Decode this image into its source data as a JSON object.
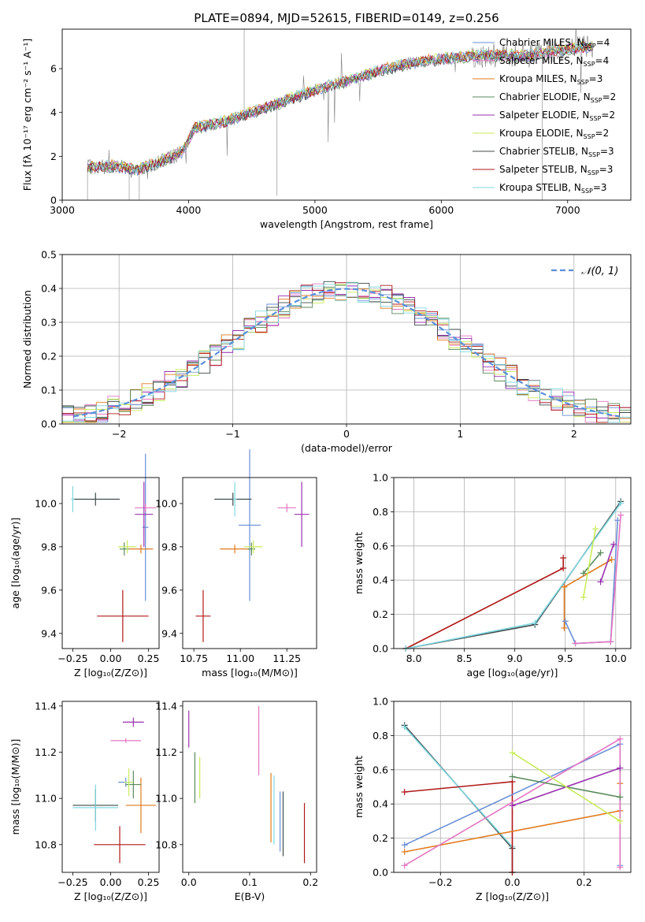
{
  "colors": {
    "chab_miles": "#6a8fd8",
    "salp_miles": "#e377c2",
    "krou_miles": "#e07b1f",
    "chab_elodie": "#5a8a5a",
    "salp_elodie": "#9b30b0",
    "krou_elodie": "#c8ec5a",
    "chab_stelib": "#3f4a4a",
    "salp_stelib": "#b01818",
    "krou_stelib": "#80d8e0",
    "spectrum": "#808080",
    "gauss": "#5b8fd8"
  },
  "chart_data": [
    {
      "type": "line",
      "title": "PLATE=0894, MJD=52615, FIBERID=0149, z=0.256",
      "xlabel": "wavelength [Angstrom, rest frame]",
      "ylabel": "Flux [fλ 10⁻¹⁷ erg cm⁻² s⁻¹ A⁻¹]",
      "xlim": [
        3000,
        7500
      ],
      "ylim": [
        0,
        7.8
      ],
      "xticks": [
        "3000",
        "4000",
        "5000",
        "6000",
        "7000"
      ],
      "yticks": [
        "0",
        "2",
        "4",
        "6"
      ],
      "grid": false,
      "legend": "top-right",
      "legend_entries": [
        {
          "label": "Chabrier MILES, N",
          "sub": "SSP",
          "suffix": "=4",
          "color": "chab_miles"
        },
        {
          "label": "Salpeter MILES, N",
          "sub": "SSP",
          "suffix": "=4",
          "color": "salp_miles"
        },
        {
          "label": "Kroupa MILES, N",
          "sub": "SSP",
          "suffix": "=3",
          "color": "krou_miles"
        },
        {
          "label": "Chabrier ELODIE, N",
          "sub": "SSP",
          "suffix": "=2",
          "color": "chab_elodie"
        },
        {
          "label": "Salpeter ELODIE, N",
          "sub": "SSP",
          "suffix": "=2",
          "color": "salp_elodie"
        },
        {
          "label": "Kroupa ELODIE, N",
          "sub": "SSP",
          "suffix": "=2",
          "color": "krou_elodie"
        },
        {
          "label": "Chabrier STELIB, N",
          "sub": "SSP",
          "suffix": "=3",
          "color": "chab_stelib"
        },
        {
          "label": "Salpeter STELIB, N",
          "sub": "SSP",
          "suffix": "=3",
          "color": "salp_stelib"
        },
        {
          "label": "Kroupa STELIB, N",
          "sub": "SSP",
          "suffix": "=3",
          "color": "krou_stelib"
        }
      ],
      "continuum": [
        [
          3200,
          1.5
        ],
        [
          3400,
          1.55
        ],
        [
          3600,
          1.4
        ],
        [
          3800,
          1.8
        ],
        [
          3950,
          2.2
        ],
        [
          4050,
          3.3
        ],
        [
          4300,
          3.6
        ],
        [
          4500,
          4.0
        ],
        [
          4700,
          4.4
        ],
        [
          4900,
          4.8
        ],
        [
          5100,
          5.2
        ],
        [
          5300,
          5.5
        ],
        [
          5500,
          5.9
        ],
        [
          5800,
          6.3
        ],
        [
          6100,
          6.5
        ],
        [
          6400,
          6.6
        ],
        [
          6700,
          6.6
        ],
        [
          7000,
          6.9
        ],
        [
          7200,
          7.0
        ]
      ]
    },
    {
      "type": "bar",
      "xlabel": "(data-model)/error",
      "ylabel": "Normed distribution",
      "xlim": [
        -2.5,
        2.5
      ],
      "ylim": [
        0,
        0.5
      ],
      "xticks": [
        "−2",
        "−1",
        "0",
        "1",
        "2"
      ],
      "yticks": [
        "0.0",
        "0.1",
        "0.2",
        "0.3",
        "0.4",
        "0.5"
      ],
      "grid": true,
      "legend": "top-right",
      "legend_label": "𝒩(0, 1)"
    },
    {
      "type": "scatter",
      "xlabel": "Z [log₁₀(Z/Z⊙)]",
      "ylabel": "age  [log₁₀(age/yr)]",
      "xlim": [
        -0.32,
        0.32
      ],
      "ylim": [
        9.33,
        10.12
      ],
      "xticks": [
        "−0.25",
        "0.00",
        "0.25"
      ],
      "yticks": [
        "9.4",
        "9.6",
        "9.8",
        "10.0"
      ],
      "points": [
        {
          "c": "chab_miles",
          "x": 0.23,
          "y": 9.89,
          "ex": 0.02,
          "ey": 0.34
        },
        {
          "c": "salp_miles",
          "x": 0.23,
          "y": 9.98,
          "ex": 0.07,
          "ey": 0.02
        },
        {
          "c": "krou_miles",
          "x": 0.2,
          "y": 9.79,
          "ex": 0.08,
          "ey": 0.02
        },
        {
          "c": "chab_elodie",
          "x": 0.09,
          "y": 9.79,
          "ex": 0.03,
          "ey": 0.03
        },
        {
          "c": "salp_elodie",
          "x": 0.22,
          "y": 9.95,
          "ex": 0.06,
          "ey": 0.15
        },
        {
          "c": "krou_elodie",
          "x": 0.11,
          "y": 9.8,
          "ex": 0.06,
          "ey": 0.03
        },
        {
          "c": "chab_stelib",
          "x": -0.1,
          "y": 10.02,
          "ex": 0.16,
          "ey": 0.03
        },
        {
          "c": "salp_stelib",
          "x": 0.08,
          "y": 9.48,
          "ex": 0.17,
          "ey": 0.12
        },
        {
          "c": "krou_stelib",
          "x": -0.25,
          "y": 10.02,
          "ex": 0.01,
          "ey": 0.06
        }
      ]
    },
    {
      "type": "scatter",
      "xlabel": "mass [log₁₀(M/M⊙)]",
      "ylabel": "",
      "xlim": [
        10.69,
        11.41
      ],
      "ylim": [
        9.33,
        10.12
      ],
      "xticks": [
        "10.75",
        "11.00",
        "11.25"
      ],
      "yticks": [
        "9.4",
        "9.6",
        "9.8",
        "10.0"
      ],
      "points": [
        {
          "c": "chab_miles",
          "x": 11.05,
          "y": 9.9,
          "ex": 0.06,
          "ey": 0.35
        },
        {
          "c": "salp_miles",
          "x": 11.25,
          "y": 9.98,
          "ex": 0.05,
          "ey": 0.02
        },
        {
          "c": "krou_miles",
          "x": 10.97,
          "y": 9.79,
          "ex": 0.08,
          "ey": 0.02
        },
        {
          "c": "chab_elodie",
          "x": 11.06,
          "y": 9.79,
          "ex": 0.02,
          "ey": 0.03
        },
        {
          "c": "salp_elodie",
          "x": 11.33,
          "y": 9.95,
          "ex": 0.04,
          "ey": 0.15
        },
        {
          "c": "krou_elodie",
          "x": 11.07,
          "y": 9.8,
          "ex": 0.05,
          "ey": 0.03
        },
        {
          "c": "chab_stelib",
          "x": 10.96,
          "y": 10.02,
          "ex": 0.1,
          "ey": 0.03
        },
        {
          "c": "salp_stelib",
          "x": 10.8,
          "y": 9.48,
          "ex": 0.04,
          "ey": 0.12
        },
        {
          "c": "krou_stelib",
          "x": 10.97,
          "y": 10.02,
          "ex": 0.01,
          "ey": 0.08
        }
      ]
    },
    {
      "type": "line",
      "xlabel": "age  [log₁₀(age/yr)]",
      "ylabel": "mass weight",
      "xlim": [
        7.8,
        10.15
      ],
      "ylim": [
        0,
        1
      ],
      "xticks": [
        "8.0",
        "8.5",
        "9.0",
        "9.5",
        "10.0"
      ],
      "yticks": [
        "0.0",
        "0.2",
        "0.4",
        "0.6",
        "0.8",
        "1.0"
      ],
      "grid": true,
      "series": [
        {
          "c": "salp_stelib",
          "x": [
            7.92,
            9.48,
            9.48
          ],
          "y": [
            0.0,
            0.47,
            0.53
          ]
        },
        {
          "c": "chab_stelib",
          "x": [
            7.92,
            9.2,
            10.05
          ],
          "y": [
            0.0,
            0.14,
            0.86
          ]
        },
        {
          "c": "krou_stelib",
          "x": [
            7.92,
            9.2,
            10.05
          ],
          "y": [
            0.0,
            0.15,
            0.85
          ]
        },
        {
          "c": "krou_miles",
          "x": [
            9.49,
            9.49,
            9.96
          ],
          "y": [
            0.12,
            0.36,
            0.52
          ]
        },
        {
          "c": "chab_miles",
          "x": [
            9.5,
            9.6,
            9.95,
            10.02
          ],
          "y": [
            0.16,
            0.03,
            0.04,
            0.75
          ]
        },
        {
          "c": "salp_miles",
          "x": [
            9.6,
            9.95,
            10.05
          ],
          "y": [
            0.03,
            0.04,
            0.78
          ]
        },
        {
          "c": "chab_elodie",
          "x": [
            9.68,
            9.85
          ],
          "y": [
            0.44,
            0.56
          ]
        },
        {
          "c": "salp_elodie",
          "x": [
            9.85,
            9.98
          ],
          "y": [
            0.39,
            0.61
          ]
        },
        {
          "c": "krou_elodie",
          "x": [
            9.68,
            9.8
          ],
          "y": [
            0.3,
            0.7
          ]
        }
      ]
    },
    {
      "type": "scatter",
      "xlabel": "Z [log₁₀(Z/Z⊙)]",
      "ylabel": "mass [log₁₀(M/M⊙)]",
      "xlim": [
        -0.32,
        0.32
      ],
      "ylim": [
        10.68,
        11.42
      ],
      "xticks": [
        "−0.25",
        "0.00",
        "0.25"
      ],
      "yticks": [
        "10.8",
        "11.0",
        "11.2",
        "11.4"
      ],
      "points": [
        {
          "c": "chab_miles",
          "x": 0.1,
          "y": 11.07,
          "ex": 0.05,
          "ey": 0.02
        },
        {
          "c": "salp_miles",
          "x": 0.1,
          "y": 11.25,
          "ex": 0.1,
          "ey": 0.01
        },
        {
          "c": "krou_miles",
          "x": 0.2,
          "y": 10.97,
          "ex": 0.1,
          "ey": 0.12
        },
        {
          "c": "chab_elodie",
          "x": 0.15,
          "y": 11.06,
          "ex": 0.05,
          "ey": 0.06
        },
        {
          "c": "salp_elodie",
          "x": 0.15,
          "y": 11.33,
          "ex": 0.07,
          "ey": 0.02
        },
        {
          "c": "krou_elodie",
          "x": 0.12,
          "y": 11.07,
          "ex": 0.03,
          "ey": 0.06
        },
        {
          "c": "chab_stelib",
          "x": -0.1,
          "y": 10.97,
          "ex": 0.15,
          "ey": 0.07
        },
        {
          "c": "salp_stelib",
          "x": 0.06,
          "y": 10.8,
          "ex": 0.17,
          "ey": 0.08
        },
        {
          "c": "krou_stelib",
          "x": -0.1,
          "y": 10.96,
          "ex": 0.15,
          "ey": 0.1
        }
      ]
    },
    {
      "type": "scatter",
      "xlabel": "E(B-V)",
      "ylabel": "",
      "xlim": [
        -0.01,
        0.21
      ],
      "ylim": [
        10.68,
        11.42
      ],
      "xticks": [
        "0.0",
        "0.1",
        "0.2"
      ],
      "yticks": [
        "10.8",
        "11.0",
        "11.2",
        "11.4"
      ],
      "points": [
        {
          "c": "chab_miles",
          "x": 0.15,
          "y": 10.9,
          "ex": 0,
          "ey": 0.13
        },
        {
          "c": "salp_miles",
          "x": 0.115,
          "y": 11.25,
          "ex": 0,
          "ey": 0.15
        },
        {
          "c": "krou_miles",
          "x": 0.135,
          "y": 10.96,
          "ex": 0,
          "ey": 0.15
        },
        {
          "c": "chab_elodie",
          "x": 0.01,
          "y": 11.09,
          "ex": 0,
          "ey": 0.11
        },
        {
          "c": "salp_elodie",
          "x": 0.0,
          "y": 11.3,
          "ex": 0,
          "ey": 0.08
        },
        {
          "c": "krou_elodie",
          "x": 0.018,
          "y": 11.09,
          "ex": 0,
          "ey": 0.09
        },
        {
          "c": "chab_stelib",
          "x": 0.155,
          "y": 10.89,
          "ex": 0,
          "ey": 0.14
        },
        {
          "c": "salp_stelib",
          "x": 0.19,
          "y": 10.85,
          "ex": 0,
          "ey": 0.13
        },
        {
          "c": "krou_stelib",
          "x": 0.14,
          "y": 10.95,
          "ex": 0,
          "ey": 0.15
        }
      ]
    },
    {
      "type": "line",
      "xlabel": "Z [log₁₀(Z/Z⊙)]",
      "ylabel": "mass weight",
      "xlim": [
        -0.33,
        0.33
      ],
      "ylim": [
        0,
        1
      ],
      "xticks": [
        "−0.2",
        "0.0",
        "0.2"
      ],
      "yticks": [
        "0.0",
        "0.2",
        "0.4",
        "0.6",
        "0.8",
        "1.0"
      ],
      "grid": true,
      "series": [
        {
          "c": "chab_stelib",
          "x": [
            -0.3,
            0.0,
            0.0
          ],
          "y": [
            0.86,
            0.14,
            0.0
          ]
        },
        {
          "c": "krou_stelib",
          "x": [
            -0.3,
            0.0,
            0.0
          ],
          "y": [
            0.85,
            0.15,
            0.0
          ]
        },
        {
          "c": "salp_stelib",
          "x": [
            -0.3,
            0.0,
            0.0
          ],
          "y": [
            0.47,
            0.53,
            0.0
          ]
        },
        {
          "c": "krou_miles",
          "x": [
            -0.3,
            0.3,
            0.3
          ],
          "y": [
            0.12,
            0.36,
            0.52
          ]
        },
        {
          "c": "chab_miles",
          "x": [
            -0.3,
            0.3,
            0.3
          ],
          "y": [
            0.16,
            0.75,
            0.04
          ]
        },
        {
          "c": "salp_miles",
          "x": [
            -0.3,
            0.3,
            0.3
          ],
          "y": [
            0.04,
            0.78,
            0.03
          ]
        },
        {
          "c": "chab_elodie",
          "x": [
            0.0,
            0.3
          ],
          "y": [
            0.56,
            0.44
          ]
        },
        {
          "c": "salp_elodie",
          "x": [
            0.0,
            0.3
          ],
          "y": [
            0.39,
            0.61
          ]
        },
        {
          "c": "krou_elodie",
          "x": [
            0.0,
            0.3
          ],
          "y": [
            0.7,
            0.3
          ]
        }
      ]
    }
  ]
}
